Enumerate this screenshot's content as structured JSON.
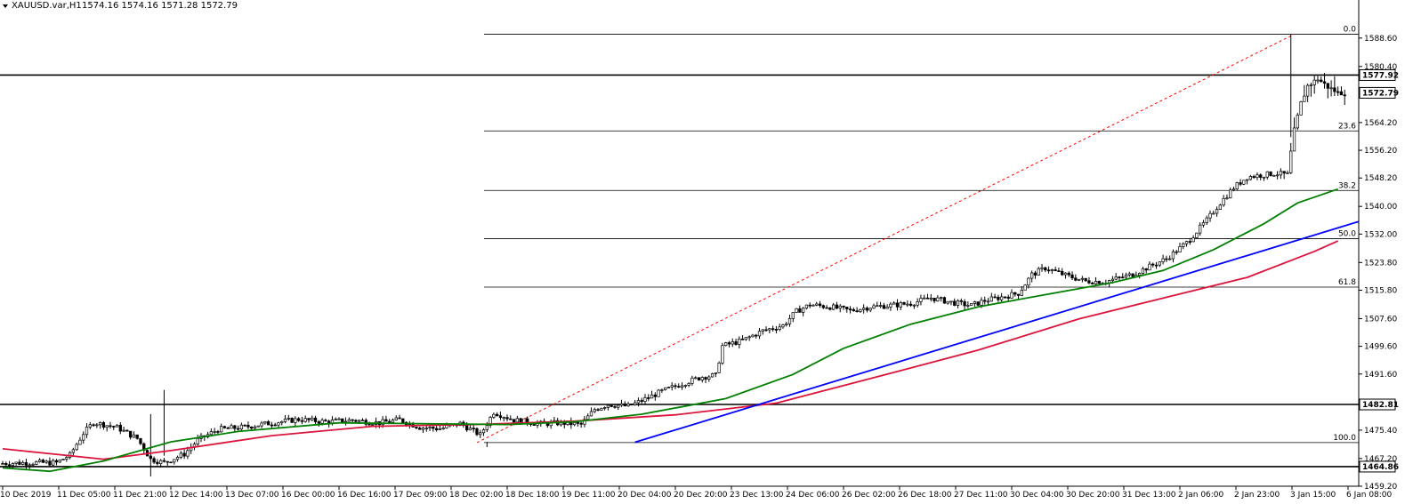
{
  "header": {
    "symbol": "XAUUSD.var,H1",
    "ohlc": "1574.16 1574.16 1571.28 1572.79"
  },
  "colors": {
    "bull": "#ffffff",
    "bear": "#000000",
    "ma_fast": "#008000",
    "ma_slow": "#dc143c",
    "trendline": "#0000ff",
    "fib_trend": "#ff0000",
    "hline": "#000000",
    "fib_level": "#000000"
  },
  "chart_data": {
    "type": "candlestick",
    "ylim": [
      1459.2,
      1596.0
    ],
    "y_ticks": [
      "1588.60",
      "1580.40",
      "1564.20",
      "1556.20",
      "1548.20",
      "1540.00",
      "1532.00",
      "1523.80",
      "1515.80",
      "1507.60",
      "1499.60",
      "1491.60",
      "1475.40",
      "1467.20",
      "1459.20"
    ],
    "x_ticks": [
      "10 Dec 2019",
      "11 Dec 05:00",
      "11 Dec 21:00",
      "12 Dec 14:00",
      "13 Dec 07:00",
      "16 Dec 00:00",
      "16 Dec 16:00",
      "17 Dec 09:00",
      "18 Dec 02:00",
      "18 Dec 18:00",
      "19 Dec 11:00",
      "20 Dec 04:00",
      "20 Dec 20:00",
      "23 Dec 13:00",
      "24 Dec 06:00",
      "26 Dec 02:00",
      "26 Dec 18:00",
      "27 Dec 11:00",
      "30 Dec 04:00",
      "30 Dec 20:00",
      "31 Dec 13:00",
      "2 Jan 06:00",
      "2 Jan 23:00",
      "3 Jan 15:00",
      "6 Jan 08:00"
    ],
    "price_labels": [
      {
        "value": 1577.92,
        "text": "1577.92"
      },
      {
        "value": 1572.79,
        "text": "1572.79"
      },
      {
        "value": 1482.81,
        "text": "1482.81"
      },
      {
        "value": 1464.86,
        "text": "1464.86"
      }
    ],
    "horizontal_lines": [
      1577.92,
      1482.81,
      1464.86
    ],
    "fibonacci": {
      "levels": [
        {
          "label": "0.0",
          "price": 1589.7
        },
        {
          "label": "23.6",
          "price": 1561.8
        },
        {
          "label": "38.2",
          "price": 1544.6
        },
        {
          "label": "50.0",
          "price": 1530.7
        },
        {
          "label": "61.8",
          "price": 1516.7
        },
        {
          "label": "100.0",
          "price": 1471.8
        }
      ]
    },
    "trend_points": [
      [
        0,
        1465.8
      ],
      [
        8,
        1466.0
      ],
      [
        16,
        1466.0
      ],
      [
        20,
        1468.2
      ],
      [
        24,
        1474.5
      ],
      [
        27,
        1477.6
      ],
      [
        34,
        1476.2
      ],
      [
        38,
        1474.0
      ],
      [
        40,
        1473.0
      ],
      [
        44,
        1467.0
      ],
      [
        48,
        1466.0
      ],
      [
        54,
        1468.5
      ],
      [
        58,
        1472.5
      ],
      [
        64,
        1475.6
      ],
      [
        72,
        1476.3
      ],
      [
        80,
        1477.5
      ],
      [
        88,
        1478.5
      ],
      [
        96,
        1477.8
      ],
      [
        104,
        1478.3
      ],
      [
        112,
        1477.5
      ],
      [
        118,
        1478.4
      ],
      [
        124,
        1476.2
      ],
      [
        130,
        1475.8
      ],
      [
        136,
        1477.3
      ],
      [
        142,
        1474.0
      ],
      [
        146,
        1480.6
      ],
      [
        152,
        1478.3
      ],
      [
        160,
        1477.2
      ],
      [
        166,
        1477.5
      ],
      [
        172,
        1477.0
      ],
      [
        176,
        1481.4
      ],
      [
        180,
        1482.8
      ],
      [
        186,
        1482.3
      ],
      [
        190,
        1483.9
      ],
      [
        196,
        1486.6
      ],
      [
        202,
        1488.8
      ],
      [
        208,
        1490.8
      ],
      [
        212,
        1491.2
      ],
      [
        214,
        1499.7
      ],
      [
        220,
        1501.3
      ],
      [
        226,
        1504.1
      ],
      [
        232,
        1505.6
      ],
      [
        236,
        1509.7
      ],
      [
        240,
        1511.6
      ],
      [
        246,
        1511.0
      ],
      [
        252,
        1509.9
      ],
      [
        258,
        1511.0
      ],
      [
        264,
        1511.4
      ],
      [
        270,
        1512.0
      ],
      [
        276,
        1513.6
      ],
      [
        282,
        1512.3
      ],
      [
        288,
        1511.4
      ],
      [
        292,
        1512.8
      ],
      [
        296,
        1513.6
      ],
      [
        302,
        1514.9
      ],
      [
        306,
        1520.3
      ],
      [
        310,
        1522.2
      ],
      [
        316,
        1520.1
      ],
      [
        322,
        1518.4
      ],
      [
        328,
        1518.3
      ],
      [
        336,
        1520.4
      ],
      [
        340,
        1522.2
      ],
      [
        346,
        1524.9
      ],
      [
        352,
        1529.5
      ],
      [
        358,
        1536.0
      ],
      [
        362,
        1541.0
      ],
      [
        366,
        1545.4
      ],
      [
        370,
        1548.5
      ],
      [
        378,
        1549.5
      ],
      [
        382,
        1549.2
      ],
      [
        384,
        1561.9
      ],
      [
        386,
        1569.8
      ],
      [
        388,
        1574.8
      ],
      [
        391,
        1576.8
      ],
      [
        394,
        1574.5
      ],
      [
        397,
        1572.8
      ]
    ],
    "ma_fast": [
      [
        0,
        1464.5
      ],
      [
        14,
        1463.5
      ],
      [
        30,
        1466.5
      ],
      [
        50,
        1472.0
      ],
      [
        70,
        1475.0
      ],
      [
        100,
        1477.5
      ],
      [
        130,
        1477.2
      ],
      [
        150,
        1477.0
      ],
      [
        170,
        1477.8
      ],
      [
        190,
        1480.0
      ],
      [
        215,
        1484.5
      ],
      [
        235,
        1491.5
      ],
      [
        250,
        1499.0
      ],
      [
        270,
        1506.0
      ],
      [
        290,
        1511.0
      ],
      [
        310,
        1514.5
      ],
      [
        330,
        1518.0
      ],
      [
        345,
        1521.5
      ],
      [
        360,
        1527.5
      ],
      [
        375,
        1535.0
      ],
      [
        385,
        1541.0
      ],
      [
        397,
        1545.0
      ]
    ],
    "ma_slow": [
      [
        0,
        1470.0
      ],
      [
        30,
        1467.0
      ],
      [
        50,
        1469.5
      ],
      [
        80,
        1473.8
      ],
      [
        110,
        1476.5
      ],
      [
        140,
        1477.0
      ],
      [
        170,
        1478.0
      ],
      [
        200,
        1479.8
      ],
      [
        230,
        1483.2
      ],
      [
        260,
        1490.8
      ],
      [
        290,
        1498.5
      ],
      [
        320,
        1507.5
      ],
      [
        345,
        1513.5
      ],
      [
        370,
        1519.5
      ],
      [
        390,
        1527.0
      ],
      [
        397,
        1530.0
      ]
    ],
    "trendline": {
      "from": [
        188,
        1471.9
      ],
      "to": [
        397,
        1533.8
      ]
    },
    "fib_trendline": {
      "from": [
        141,
        1471.8
      ],
      "to": [
        384,
        1589.7
      ]
    }
  }
}
